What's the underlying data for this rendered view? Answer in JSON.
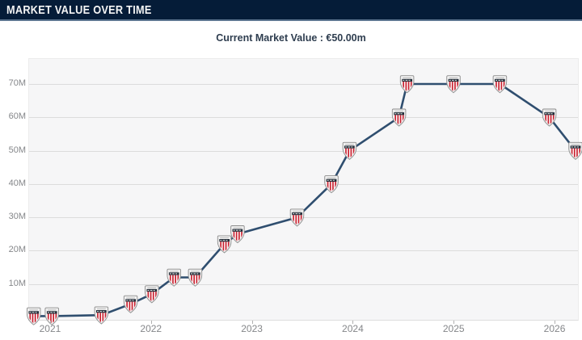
{
  "header": {
    "title": "MARKET VALUE OVER TIME"
  },
  "subtitle": {
    "text": "Current Market Value : €50.00m"
  },
  "colors": {
    "header_bg": "#051c38",
    "header_border": "#5d7590",
    "line": "#2f4e6f",
    "plot_bg": "#f6f6f7",
    "gridline": "#dcdcdc",
    "tick_text": "#85878a",
    "crest_red": "#c8202f",
    "crest_dark_band": "#232d38"
  },
  "chart_data": {
    "type": "line",
    "title": "Market value over time",
    "unit": "€ million",
    "current_value_m": 50.0,
    "marker": "athletic-club-bilbao-crest",
    "line_color": "#2f4e6f",
    "grid": true,
    "legend": "none",
    "x_axis": {
      "ticks": [
        2021,
        2022,
        2023,
        2024,
        2025,
        2026
      ],
      "tick_labels": [
        "2021",
        "2022",
        "2023",
        "2024",
        "2025",
        "2026"
      ],
      "range": [
        2020.784,
        2026.24
      ]
    },
    "y_axis": {
      "ticks": [
        10,
        20,
        30,
        40,
        50,
        60,
        70
      ],
      "tick_labels": [
        "10M",
        "20M",
        "30M",
        "40M",
        "50M",
        "60M",
        "70M"
      ],
      "range": [
        -1.2,
        77.5
      ]
    },
    "points": [
      {
        "x": 2020.83,
        "y": 0.4
      },
      {
        "x": 2021.01,
        "y": 0.4
      },
      {
        "x": 2021.5,
        "y": 0.7
      },
      {
        "x": 2021.79,
        "y": 4
      },
      {
        "x": 2022.0,
        "y": 7
      },
      {
        "x": 2022.22,
        "y": 12
      },
      {
        "x": 2022.43,
        "y": 12
      },
      {
        "x": 2022.72,
        "y": 22
      },
      {
        "x": 2022.85,
        "y": 25
      },
      {
        "x": 2023.44,
        "y": 30
      },
      {
        "x": 2023.78,
        "y": 40
      },
      {
        "x": 2023.96,
        "y": 50
      },
      {
        "x": 2024.45,
        "y": 60
      },
      {
        "x": 2024.53,
        "y": 70
      },
      {
        "x": 2024.99,
        "y": 70
      },
      {
        "x": 2025.45,
        "y": 70
      },
      {
        "x": 2025.94,
        "y": 60
      },
      {
        "x": 2026.2,
        "y": 50
      }
    ]
  }
}
